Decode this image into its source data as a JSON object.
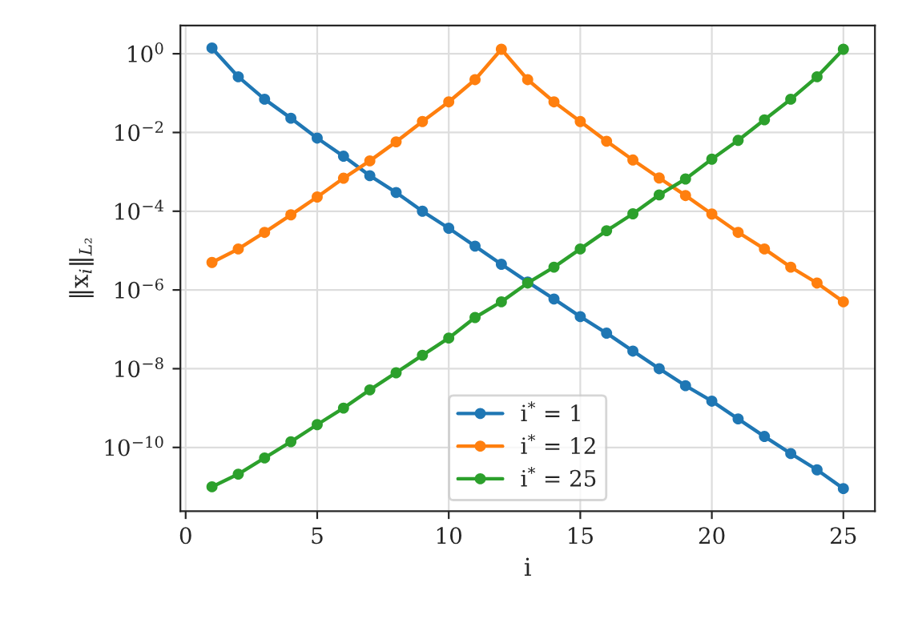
{
  "chart_data": {
    "type": "line",
    "xlabel": "i",
    "ylabel": "‖x$_{i}$‖$_{L₂}$",
    "x": [
      1,
      2,
      3,
      4,
      5,
      6,
      7,
      8,
      9,
      10,
      11,
      12,
      13,
      14,
      15,
      16,
      17,
      18,
      19,
      20,
      21,
      22,
      23,
      24,
      25
    ],
    "series": [
      {
        "name": "i$^{*}$ = 1",
        "color": "#1f77b4",
        "values": [
          1.4,
          0.26,
          0.07,
          0.023,
          0.0072,
          0.0025,
          0.0008,
          0.0003,
          0.0001,
          3.7e-05,
          1.3e-05,
          4.5e-06,
          1.6e-06,
          5.9e-07,
          2.1e-07,
          8e-08,
          2.8e-08,
          1e-08,
          3.7e-09,
          1.5e-09,
          5.3e-10,
          1.9e-10,
          7e-11,
          2.7e-11,
          9e-12
        ]
      },
      {
        "name": "i$^{*}$ = 12",
        "color": "#ff7f0e",
        "values": [
          5e-06,
          1.1e-05,
          2.9e-05,
          8.1e-05,
          0.00023,
          0.00069,
          0.0019,
          0.0058,
          0.019,
          0.06,
          0.22,
          1.3,
          0.22,
          0.06,
          0.019,
          0.006,
          0.002,
          0.0007,
          0.00025,
          8.5e-05,
          2.9e-05,
          1.1e-05,
          3.8e-06,
          1.5e-06,
          5e-07
        ]
      },
      {
        "name": "i$^{*}$ = 25",
        "color": "#2ca02c",
        "values": [
          1e-11,
          2.1e-11,
          5.4e-11,
          1.4e-10,
          3.8e-10,
          1e-09,
          2.9e-09,
          7.9e-09,
          2.2e-08,
          6e-08,
          2e-07,
          5e-07,
          1.5e-06,
          3.8e-06,
          1.1e-05,
          3.2e-05,
          8.6e-05,
          0.00026,
          0.00066,
          0.0021,
          0.0063,
          0.021,
          0.07,
          0.26,
          1.3
        ]
      }
    ],
    "log": "y",
    "xlim": [
      -0.2,
      26.2
    ],
    "xticks": [
      0,
      5,
      10,
      15,
      20,
      25
    ],
    "ylim": [
      2.4e-12,
      5.2
    ],
    "yticks": [
      {
        "value": 1,
        "label": "10$^{0}$"
      },
      {
        "value": 0.01,
        "label": "10$^{−2}$"
      },
      {
        "value": 0.0001,
        "label": "10$^{−4}$"
      },
      {
        "value": 1e-06,
        "label": "10$^{−6}$"
      },
      {
        "value": 1e-08,
        "label": "10$^{−8}$"
      },
      {
        "value": 1e-10,
        "label": "10$^{−10}$"
      }
    ],
    "grid": true,
    "legend": "bottom",
    "marker": "circle",
    "line_style": "solid"
  }
}
